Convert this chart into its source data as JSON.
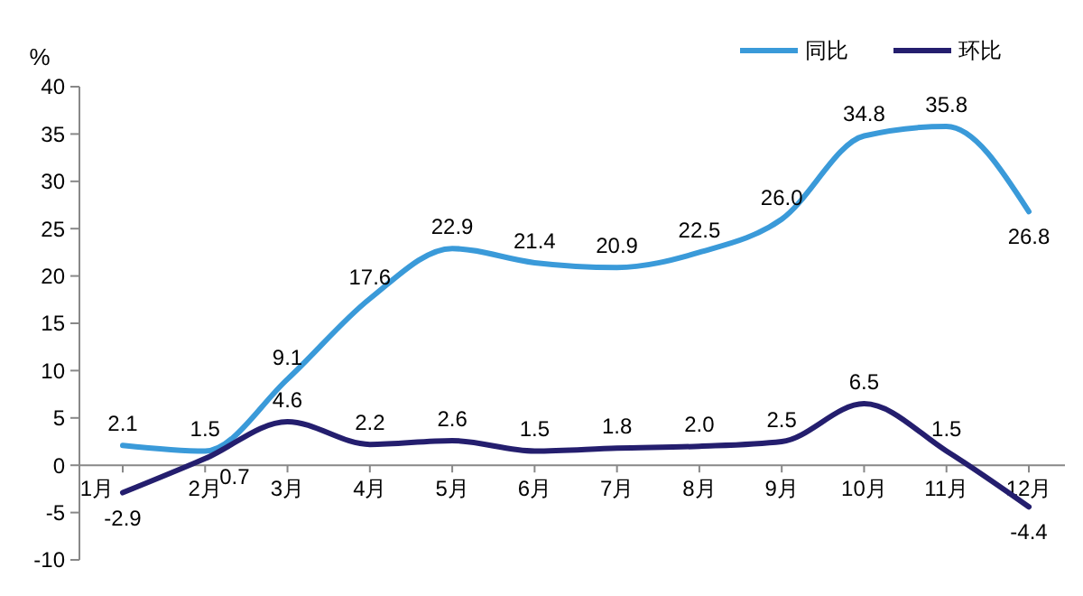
{
  "chart_data": {
    "type": "line",
    "ylabel": "%",
    "categories": [
      "1月",
      "2月",
      "3月",
      "4月",
      "5月",
      "6月",
      "7月",
      "8月",
      "9月",
      "10月",
      "11月",
      "12月"
    ],
    "series": [
      {
        "name": "同比",
        "color": "#3a9ad9",
        "values": [
          2.1,
          1.5,
          9.1,
          17.6,
          22.9,
          21.4,
          20.9,
          22.5,
          26.0,
          34.8,
          35.8,
          26.8
        ],
        "value_labels": [
          "2.1",
          "1.5",
          "9.1",
          "17.6",
          "22.9",
          "21.4",
          "20.9",
          "22.5",
          "26.0",
          "34.8",
          "35.8",
          "26.8"
        ]
      },
      {
        "name": "环比",
        "color": "#241e6e",
        "values": [
          -2.9,
          0.7,
          4.6,
          2.2,
          2.6,
          1.5,
          1.8,
          2.0,
          2.5,
          6.5,
          1.5,
          -4.4
        ],
        "value_labels": [
          "-2.9",
          "0.7",
          "4.6",
          "2.2",
          "2.6",
          "1.5",
          "1.8",
          "2.0",
          "2.5",
          "6.5",
          "1.5",
          "-4.4"
        ]
      }
    ],
    "ylim": [
      -10,
      40
    ],
    "yticks": [
      -10,
      -5,
      0,
      5,
      10,
      15,
      20,
      25,
      30,
      35,
      40
    ],
    "legend": "top right",
    "grid": false
  }
}
